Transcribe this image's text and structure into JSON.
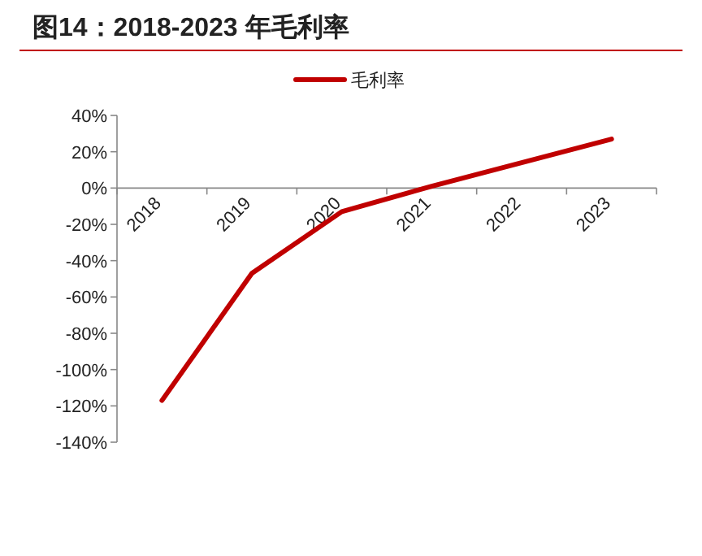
{
  "chart_data": {
    "type": "line",
    "title": "图14：2018-2023 年毛利率",
    "categories": [
      "2018",
      "2019",
      "2020",
      "2021",
      "2022",
      "2023"
    ],
    "series": [
      {
        "name": "毛利率",
        "color": "#c00000",
        "values": [
          -117,
          -47,
          -13,
          1,
          14,
          27
        ]
      }
    ],
    "ylim": [
      -140,
      40
    ],
    "yticks": [
      {
        "value": -140,
        "label": "-140%"
      },
      {
        "value": -120,
        "label": "-120%"
      },
      {
        "value": -100,
        "label": "-100%"
      },
      {
        "value": -80,
        "label": "-80%"
      },
      {
        "value": -60,
        "label": "-60%"
      },
      {
        "value": -40,
        "label": "-40%"
      },
      {
        "value": -20,
        "label": "-20%"
      },
      {
        "value": 0,
        "label": "0%"
      },
      {
        "value": 20,
        "label": "20%"
      },
      {
        "value": 40,
        "label": "40%"
      }
    ],
    "legend": "top",
    "grid": false,
    "marker": "none",
    "line_style": "solid"
  }
}
